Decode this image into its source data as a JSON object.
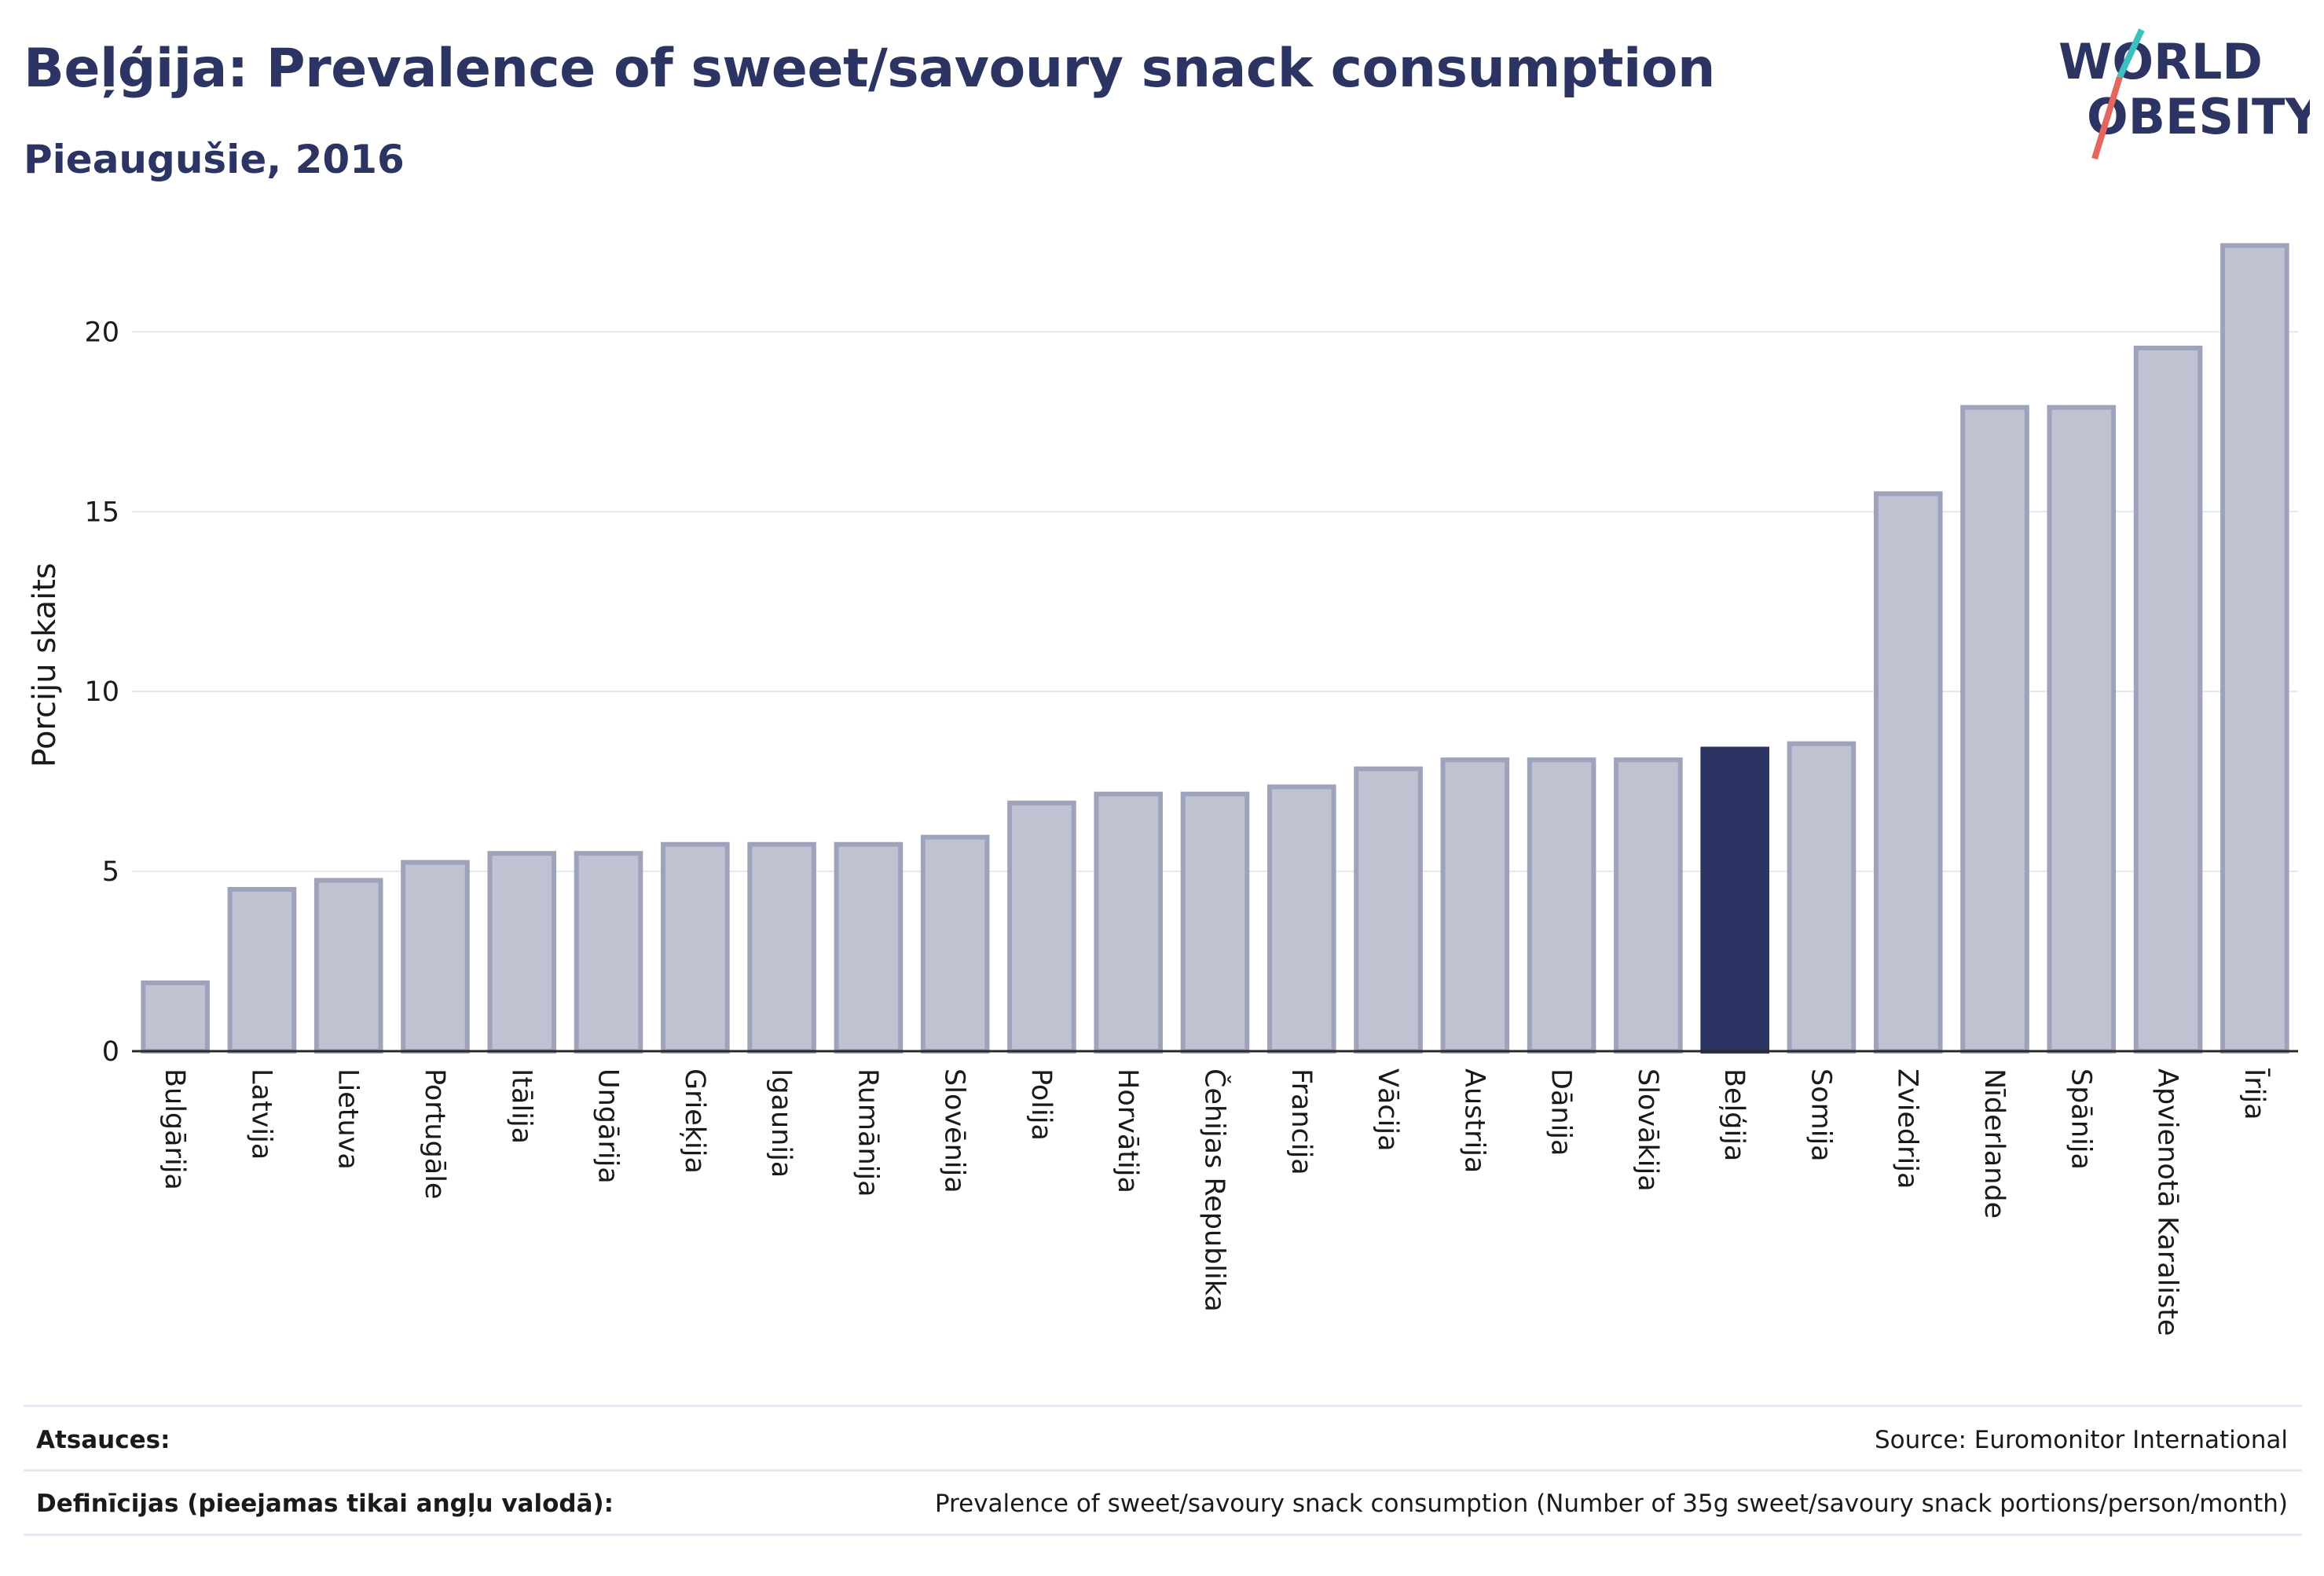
{
  "header": {
    "title": "Beļģija: Prevalence of sweet/savoury snack consumption",
    "subtitle": "Pieaugušie, 2016"
  },
  "logo": {
    "line1": "WORLD",
    "line2": "OBESITY",
    "accent_teal": "#3bbfbf",
    "accent_red": "#e4675d",
    "color": "#2b3462"
  },
  "chart_data": {
    "type": "bar",
    "title": "Beļģija: Prevalence of sweet/savoury snack consumption",
    "subtitle": "Pieaugušie, 2016",
    "xlabel": "",
    "ylabel": "Porciju skaits",
    "ylim": [
      0,
      23
    ],
    "yticks": [
      0,
      5,
      10,
      15,
      20
    ],
    "grid": true,
    "highlight": "Beļģija",
    "colors": {
      "bar": "#bfc2d1",
      "bar_edge": "#9ea3bb",
      "highlight": "#2b3462"
    },
    "categories": [
      "Bulgārija",
      "Latvija",
      "Lietuva",
      "Portugāle",
      "Itālija",
      "Ungārija",
      "Grieķija",
      "Igaunija",
      "Rumānija",
      "Slovēnija",
      "Polija",
      "Horvātija",
      "Čehijas Republika",
      "Francija",
      "Vācija",
      "Austrija",
      "Dānija",
      "Slovākija",
      "Beļģija",
      "Somija",
      "Zviedrija",
      "Nīderlande",
      "Spānija",
      "Apvienotā Karaliste",
      "Īrija"
    ],
    "values": [
      1.9,
      4.5,
      4.75,
      5.25,
      5.5,
      5.5,
      5.75,
      5.75,
      5.75,
      5.95,
      6.9,
      7.15,
      7.15,
      7.35,
      7.85,
      8.1,
      8.1,
      8.1,
      8.4,
      8.55,
      15.5,
      17.9,
      17.9,
      19.55,
      22.4
    ]
  },
  "footer": {
    "sources_label": "Atsauces:",
    "sources_value": "Source: Euromonitor International",
    "definitions_label": "Definīcijas (pieejamas tikai angļu valodā):",
    "definitions_value": "Prevalence of sweet/savoury snack consumption (Number of 35g sweet/savoury snack portions/person/month)"
  }
}
